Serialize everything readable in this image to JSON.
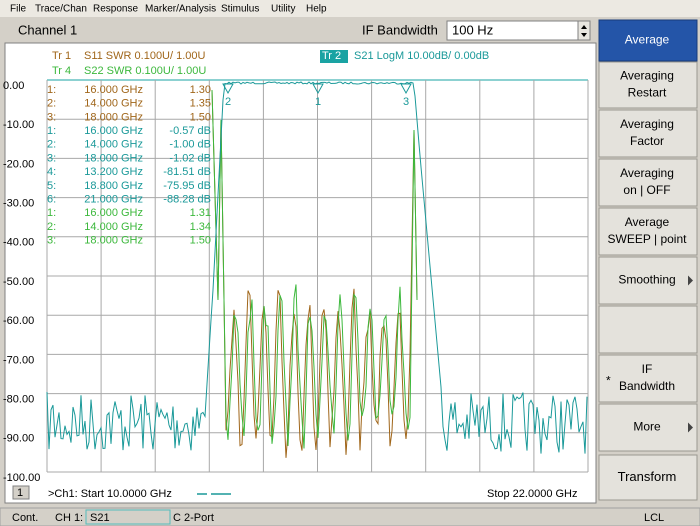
{
  "menu": [
    "File",
    "Trace/Chan",
    "Response",
    "Marker/Analysis",
    "Stimulus",
    "Utility",
    "Help"
  ],
  "header": {
    "channel": "Channel 1",
    "field_label": "IF Bandwidth",
    "field_value": "100 Hz"
  },
  "softkeys": [
    {
      "lines": [
        "Average"
      ]
    },
    {
      "lines": [
        "Averaging",
        "Restart"
      ]
    },
    {
      "lines": [
        "Averaging",
        "Factor"
      ]
    },
    {
      "lines": [
        "Averaging",
        "on | OFF"
      ]
    },
    {
      "lines": [
        "Average",
        "SWEEP | point"
      ]
    },
    {
      "lines": [
        "Smoothing"
      ]
    },
    {
      "lines": []
    },
    {
      "flag": "*",
      "lines": [
        "IF",
        "Bandwidth"
      ]
    },
    {
      "lines": [
        "More"
      ]
    },
    {
      "lines": [
        "Transform"
      ]
    }
  ],
  "traces": [
    {
      "label": "Tr  1",
      "desc": "S11 SWR 0.100U/  1.00U"
    },
    {
      "label": "Tr  4",
      "desc": "S22 SWR 0.100U/  1.00U"
    },
    {
      "label": "Tr  2",
      "desc": "S21 LogM 10.00dB/  0.00dB"
    }
  ],
  "y_labels": [
    "0.00",
    "-10.00",
    "-20.00",
    "-30.00",
    "-40.00",
    "-50.00",
    "-60.00",
    "-70.00",
    "-80.00",
    "-90.00",
    "-100.00"
  ],
  "marker_table": [
    {
      "group": "s11",
      "rows": [
        [
          "1:",
          "16.000 GHz",
          "1.30"
        ],
        [
          "2:",
          "14.000 GHz",
          "1.35"
        ],
        [
          "3:",
          "18.000 GHz",
          "1.50"
        ]
      ]
    },
    {
      "group": "s21",
      "rows": [
        [
          "1:",
          "16.000 GHz",
          "-0.57 dB"
        ],
        [
          "2:",
          "14.000 GHz",
          "-1.00 dB"
        ],
        [
          "3:",
          "18.000 GHz",
          "-1.02 dB"
        ],
        [
          "4:",
          "13.200 GHz",
          "-81.51 dB"
        ],
        [
          "5:",
          "18.800 GHz",
          "-75.95 dB"
        ],
        [
          "6:",
          "21.000 GHz",
          "-88.28 dB"
        ]
      ]
    },
    {
      "group": "s22",
      "rows": [
        [
          "1:",
          "16.000 GHz",
          "1.31"
        ],
        [
          "2:",
          "14.000 GHz",
          "1.34"
        ],
        [
          "3:",
          "18.000 GHz",
          "1.50"
        ]
      ]
    }
  ],
  "plot_markers": [
    "2",
    "1",
    "3"
  ],
  "footer": {
    "channel_box": "1",
    "start": ">Ch1: Start  10.0000 GHz",
    "stop": "Stop  22.0000 GHz"
  },
  "status": {
    "mode": "Cont.",
    "channel": "CH 1:",
    "param": "S21",
    "port": "C  2-Port",
    "ref": "LCL"
  }
}
